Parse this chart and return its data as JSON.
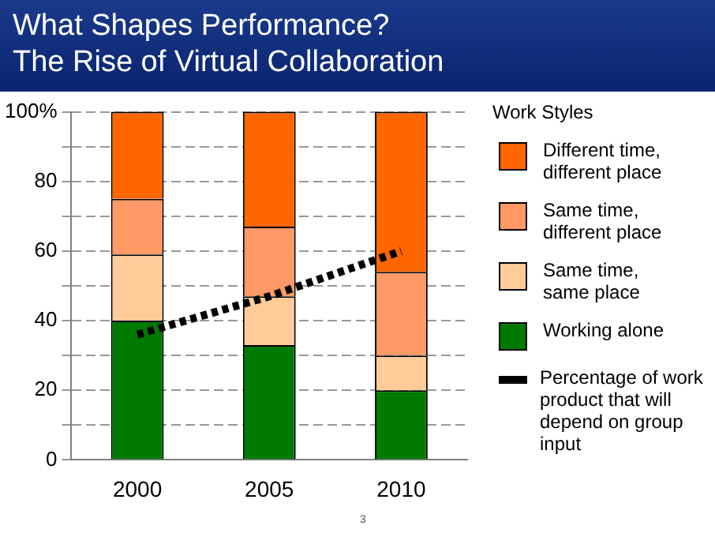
{
  "chart_data": {
    "type": "bar",
    "title": "What Shapes Performance?\nThe Rise of Virtual Collaboration",
    "legend_title": "Work Styles",
    "categories": [
      "2000",
      "2005",
      "2010"
    ],
    "stacked": true,
    "series": [
      {
        "name": "Working alone",
        "color": "#007a00",
        "values": [
          40,
          33,
          20
        ]
      },
      {
        "name": "Same time, same place",
        "color": "#ffcc99",
        "values": [
          19,
          14,
          10
        ]
      },
      {
        "name": "Same time, different place",
        "color": "#ff9966",
        "values": [
          16,
          20,
          24
        ]
      },
      {
        "name": "Different time, different place",
        "color": "#ff6600",
        "values": [
          25,
          33,
          46
        ]
      },
      {
        "name": "Percentage of work product that will depend on group input",
        "type": "line",
        "color": "#000000",
        "values": [
          36,
          47,
          60
        ],
        "line_style": "dotted",
        "marker": "none"
      }
    ],
    "ylim": [
      0,
      100
    ],
    "yticks": [
      0,
      {
        "value": 10,
        "label": null
      },
      20,
      {
        "value": 30,
        "label": null
      },
      40,
      {
        "value": 50,
        "label": null
      },
      60,
      {
        "value": 70,
        "label": null
      },
      80,
      {
        "value": 90,
        "label": null
      },
      {
        "value": 100,
        "label": "100%"
      }
    ],
    "grid": "y",
    "legend": "right",
    "annotations": [
      "3"
    ]
  }
}
